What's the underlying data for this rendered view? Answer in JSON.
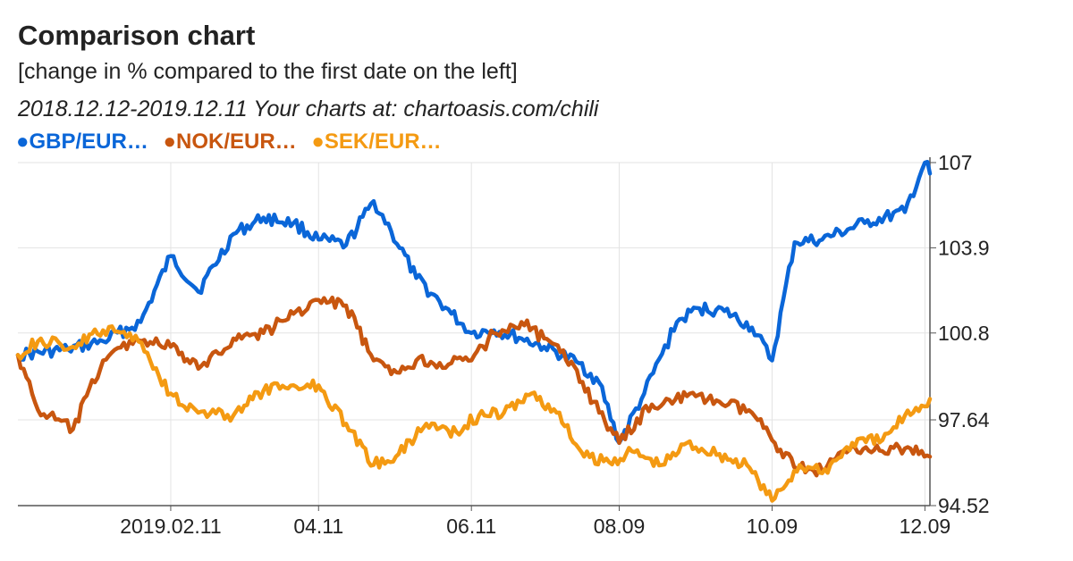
{
  "header": {
    "title": "Comparison chart",
    "subtitle": "[change in % compared to the first date on the left]",
    "period": "2018.12.12-2019.12.11 Your charts at: chartoasis.com/chili"
  },
  "legend": [
    {
      "label": "●GBP/EUR…",
      "color": "#0a66d8"
    },
    {
      "label": "●NOK/EUR…",
      "color": "#c8560f"
    },
    {
      "label": "●SEK/EUR…",
      "color": "#f49a12"
    }
  ],
  "chart_data": {
    "type": "line",
    "title": "Comparison chart",
    "ylabel": "change in % compared to the first date on the left",
    "y_ticks": [
      "107",
      "103.9",
      "100.8",
      "97.64",
      "94.52"
    ],
    "x_ticks": [
      "2019.02.11",
      "04.11",
      "06.11",
      "08.09",
      "10.09",
      "12.09"
    ],
    "ylim": [
      94.52,
      107
    ],
    "grid": true,
    "legend_position": "top-left",
    "series": [
      {
        "name": "GBP/EUR…",
        "color": "#0a66d8",
        "x": [
          "2018-12-12",
          "2019-01-01",
          "2019-01-15",
          "2019-01-30",
          "2019-02-11",
          "2019-02-22",
          "2019-03-08",
          "2019-03-20",
          "2019-04-01",
          "2019-04-11",
          "2019-04-22",
          "2019-05-03",
          "2019-05-10",
          "2019-05-20",
          "2019-06-03",
          "2019-06-11",
          "2019-06-20",
          "2019-07-01",
          "2019-07-10",
          "2019-07-24",
          "2019-08-01",
          "2019-08-09",
          "2019-08-19",
          "2019-09-01",
          "2019-09-10",
          "2019-09-20",
          "2019-10-01",
          "2019-10-09",
          "2019-10-18",
          "2019-10-29",
          "2019-11-15",
          "2019-12-01",
          "2019-12-09",
          "2019-12-11"
        ],
        "values": [
          100.0,
          100.2,
          100.5,
          101.2,
          103.6,
          102.3,
          104.4,
          105.0,
          104.8,
          104.2,
          104.0,
          105.6,
          104.5,
          102.8,
          101.5,
          100.8,
          100.9,
          100.6,
          100.3,
          99.7,
          99.0,
          96.8,
          98.6,
          101.2,
          101.7,
          101.6,
          101.0,
          99.8,
          104.1,
          104.2,
          104.8,
          105.2,
          107.0,
          106.6
        ]
      },
      {
        "name": "NOK/EUR…",
        "color": "#c8560f",
        "x": [
          "2018-12-12",
          "2018-12-20",
          "2019-01-03",
          "2019-01-15",
          "2019-01-28",
          "2019-02-11",
          "2019-02-22",
          "2019-03-08",
          "2019-03-20",
          "2019-04-01",
          "2019-04-11",
          "2019-04-22",
          "2019-05-03",
          "2019-05-10",
          "2019-05-20",
          "2019-06-03",
          "2019-06-11",
          "2019-06-20",
          "2019-07-01",
          "2019-07-10",
          "2019-07-22",
          "2019-08-01",
          "2019-08-09",
          "2019-08-22",
          "2019-09-05",
          "2019-09-18",
          "2019-10-01",
          "2019-10-09",
          "2019-10-20",
          "2019-10-29",
          "2019-11-10",
          "2019-11-22",
          "2019-12-01",
          "2019-12-11"
        ],
        "values": [
          100.0,
          98.0,
          97.3,
          99.8,
          100.6,
          100.3,
          99.5,
          100.6,
          100.8,
          101.5,
          102.0,
          101.8,
          99.8,
          99.3,
          99.8,
          99.7,
          99.8,
          100.8,
          101.2,
          100.6,
          99.6,
          97.9,
          96.8,
          98.2,
          98.5,
          98.3,
          97.9,
          96.9,
          95.9,
          95.8,
          96.7,
          96.5,
          96.6,
          96.3
        ]
      },
      {
        "name": "SEK/EUR…",
        "color": "#f49a12",
        "x": [
          "2018-12-12",
          "2018-12-20",
          "2019-01-03",
          "2019-01-15",
          "2019-01-28",
          "2019-02-11",
          "2019-02-22",
          "2019-03-08",
          "2019-03-20",
          "2019-04-01",
          "2019-04-11",
          "2019-04-22",
          "2019-05-03",
          "2019-05-13",
          "2019-05-24",
          "2019-06-05",
          "2019-06-14",
          "2019-06-24",
          "2019-07-05",
          "2019-07-15",
          "2019-07-26",
          "2019-08-05",
          "2019-08-14",
          "2019-08-26",
          "2019-09-05",
          "2019-09-18",
          "2019-09-30",
          "2019-10-09",
          "2019-10-20",
          "2019-10-29",
          "2019-11-10",
          "2019-11-22",
          "2019-12-01",
          "2019-12-11"
        ],
        "values": [
          100.0,
          100.5,
          100.3,
          100.9,
          100.7,
          98.6,
          97.9,
          97.8,
          98.7,
          98.9,
          98.9,
          97.5,
          96.0,
          96.4,
          97.5,
          97.2,
          97.8,
          97.9,
          98.6,
          97.9,
          96.3,
          96.1,
          96.5,
          96.0,
          96.8,
          96.4,
          95.9,
          94.7,
          96.0,
          95.7,
          96.8,
          96.9,
          97.8,
          98.4
        ]
      }
    ]
  }
}
